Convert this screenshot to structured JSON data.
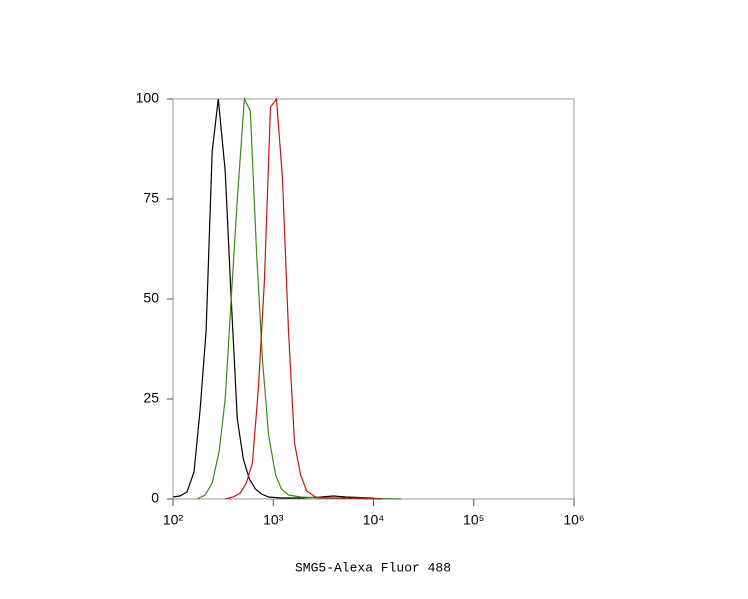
{
  "chart_data": {
    "type": "line",
    "xlabel": "SMG5-Alexa Fluor 488",
    "xscale": "log",
    "xlim": [
      100,
      1000000
    ],
    "xticks": [
      {
        "value": 100,
        "label": "10²"
      },
      {
        "value": 1000,
        "label": "10³"
      },
      {
        "value": 10000,
        "label": "10⁴"
      },
      {
        "value": 100000,
        "label": "10⁵"
      },
      {
        "value": 1000000,
        "label": "10⁶"
      }
    ],
    "ylim": [
      0,
      100
    ],
    "yticks": [
      0,
      25,
      50,
      75,
      100
    ],
    "series": [
      {
        "color": "#000000",
        "x": [
          100,
          117,
          138,
          162,
          186,
          214,
          246,
          283,
          332,
          381,
          438,
          503,
          578,
          664,
          763,
          898,
          1185,
          1876,
          2970,
          4010,
          5280,
          9420,
          11800
        ],
        "values": [
          0.5,
          0.75,
          1.75,
          6.75,
          22,
          42,
          87,
          100,
          82,
          50,
          20,
          10,
          5,
          2.5,
          1.25,
          0.5,
          0.25,
          0.25,
          0.5,
          0.75,
          0.5,
          0.25,
          0
        ]
      },
      {
        "color": "#3a8a1a",
        "x": [
          174,
          209,
          246,
          289,
          332,
          381,
          438,
          515,
          590,
          680,
          780,
          898,
          1055,
          1209,
          1420,
          1876,
          2970,
          5280,
          18900
        ],
        "values": [
          0,
          1,
          4,
          12,
          25,
          50,
          75,
          100,
          97,
          62,
          35,
          16,
          6,
          2.5,
          1,
          0.5,
          0.25,
          0.25,
          0
        ]
      },
      {
        "color": "#d01010",
        "x": [
          332,
          399,
          469,
          539,
          620,
          712,
          818,
          939,
          1078,
          1237,
          1420,
          1630,
          1876,
          2155,
          2651,
          3740,
          11800
        ],
        "values": [
          0,
          0.5,
          1.5,
          4,
          9,
          28,
          55,
          98,
          100,
          80,
          42,
          14,
          6,
          2,
          0.5,
          0.25,
          0
        ]
      }
    ]
  }
}
